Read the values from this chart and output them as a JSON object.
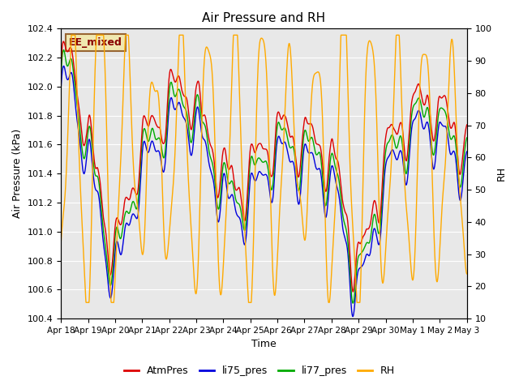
{
  "title": "Air Pressure and RH",
  "xlabel": "Time",
  "ylabel_left": "Air Pressure (kPa)",
  "ylabel_right": "RH",
  "ylim_left": [
    100.4,
    102.4
  ],
  "ylim_right": [
    10,
    100
  ],
  "annotation_text": "EE_mixed",
  "bg_color": "#e8e8e8",
  "line_colors": {
    "AtmPres": "#dd0000",
    "li75_pres": "#0000dd",
    "li77_pres": "#00aa00",
    "RH": "#ffaa00"
  },
  "legend_labels": [
    "AtmPres",
    "li75_pres",
    "li77_pres",
    "RH"
  ],
  "legend_colors": [
    "#dd0000",
    "#0000dd",
    "#00aa00",
    "#ffaa00"
  ],
  "xtick_labels": [
    "Apr 18",
    "Apr 19",
    "Apr 20",
    "Apr 21",
    "Apr 22",
    "Apr 23",
    "Apr 24",
    "Apr 25",
    "Apr 26",
    "Apr 27",
    "Apr 28",
    "Apr 29",
    "Apr 30",
    "May 1",
    "May 2",
    "May 3"
  ],
  "num_points": 2000
}
